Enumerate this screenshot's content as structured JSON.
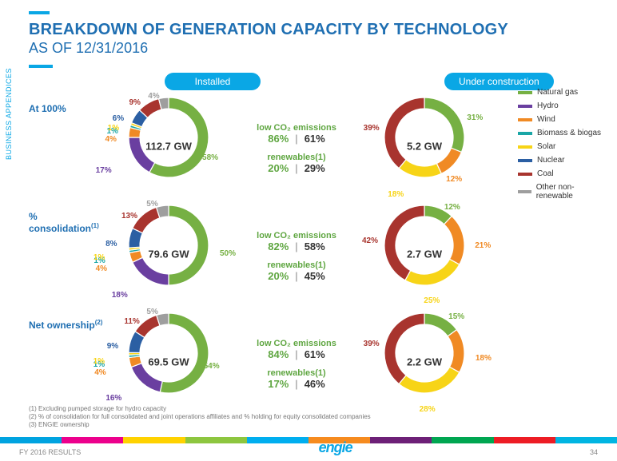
{
  "sidebarLabel": "BUSINESS APPENDICES",
  "title": "BREAKDOWN OF GENERATION CAPACITY BY TECHNOLOGY",
  "subtitle": "AS OF 12/31/2016",
  "installedHeader": "Installed",
  "ucHeader": "Under construction",
  "donutSize": 108,
  "innerRadius": 36,
  "outerRadius": 50,
  "bgColor": "#ffffff",
  "palette": {
    "naturalGas": "#76b043",
    "hydro": "#6a3fa0",
    "wind": "#f08a24",
    "biomass": "#1aa6a6",
    "solar": "#f7d417",
    "nuclear": "#2b5fa3",
    "coal": "#a8342e",
    "other": "#9e9e9e"
  },
  "legend": [
    {
      "label": "Natural gas",
      "color": "#76b043"
    },
    {
      "label": "Hydro",
      "color": "#6a3fa0"
    },
    {
      "label": "Wind",
      "color": "#f08a24"
    },
    {
      "label": "Biomass & biogas",
      "color": "#1aa6a6"
    },
    {
      "label": "Solar",
      "color": "#f7d417"
    },
    {
      "label": "Nuclear",
      "color": "#2b5fa3"
    },
    {
      "label": "Coal",
      "color": "#a8342e"
    },
    {
      "label": "Other non-renewable",
      "color": "#9e9e9e"
    }
  ],
  "categories": [
    {
      "key": "naturalGas",
      "color": "#76b043"
    },
    {
      "key": "hydro",
      "color": "#6a3fa0"
    },
    {
      "key": "wind",
      "color": "#f08a24"
    },
    {
      "key": "biomass",
      "color": "#1aa6a6"
    },
    {
      "key": "solar",
      "color": "#f7d417"
    },
    {
      "key": "nuclear",
      "color": "#2b5fa3"
    },
    {
      "key": "coal",
      "color": "#a8342e"
    },
    {
      "key": "other",
      "color": "#9e9e9e"
    }
  ],
  "rows": [
    {
      "label": "At 100%",
      "sup": "",
      "installed": {
        "center": "112.7 GW",
        "segments": {
          "naturalGas": 58,
          "hydro": 17,
          "wind": 4,
          "biomass": 1,
          "solar": 1,
          "nuclear": 6,
          "coal": 9,
          "other": 4
        },
        "labels": {
          "naturalGas": "58%",
          "hydro": "17%",
          "wind": "4%",
          "biomass": "1%",
          "solar": "1%",
          "nuclear": "6%",
          "coal": "9%",
          "other": "4%"
        }
      },
      "stats": {
        "lowCo2": {
          "header": "low CO₂ emissions",
          "left": "86%",
          "right": "61%"
        },
        "ren": {
          "header": "renewables(1)",
          "left": "20%",
          "right": "29%"
        }
      },
      "uc": {
        "center": "5.2 GW",
        "segments": {
          "naturalGas": 31,
          "wind": 12,
          "solar": 18,
          "coal": 39
        },
        "labels": {
          "naturalGas": "31%",
          "wind": "12%",
          "solar": "18%",
          "coal": "39%"
        }
      }
    },
    {
      "label": "% consolidation",
      "sup": "(1)",
      "installed": {
        "center": "79.6 GW",
        "segments": {
          "naturalGas": 50,
          "hydro": 18,
          "wind": 4,
          "biomass": 1,
          "solar": 1,
          "nuclear": 8,
          "coal": 13,
          "other": 5
        },
        "labels": {
          "naturalGas": "50%",
          "hydro": "18%",
          "wind": "4%",
          "biomass": "1%",
          "solar": "1%",
          "nuclear": "8%",
          "coal": "13%",
          "other": "5%"
        }
      },
      "stats": {
        "lowCo2": {
          "header": "low CO₂ emissions",
          "left": "82%",
          "right": "58%"
        },
        "ren": {
          "header": "renewables(1)",
          "left": "20%",
          "right": "45%"
        }
      },
      "uc": {
        "center": "2.7 GW",
        "segments": {
          "naturalGas": 12,
          "wind": 21,
          "solar": 25,
          "coal": 42
        },
        "labels": {
          "naturalGas": "12%",
          "wind": "21%",
          "solar": "25%",
          "coal": "42%"
        }
      }
    },
    {
      "label": "Net ownership",
      "sup": "(2)",
      "installed": {
        "center": "69.5 GW",
        "segments": {
          "naturalGas": 54,
          "hydro": 16,
          "wind": 4,
          "biomass": 1,
          "solar": 1,
          "nuclear": 9,
          "coal": 11,
          "other": 5
        },
        "labels": {
          "naturalGas": "54%",
          "hydro": "16%",
          "wind": "4%",
          "biomass": "1%",
          "solar": "1%",
          "nuclear": "9%",
          "coal": "11%",
          "other": "5%"
        }
      },
      "stats": {
        "lowCo2": {
          "header": "low CO₂ emissions",
          "left": "84%",
          "right": "61%"
        },
        "ren": {
          "header": "renewables(1)",
          "left": "17%",
          "right": "46%"
        }
      },
      "uc": {
        "center": "2.2 GW",
        "segments": {
          "naturalGas": 15,
          "wind": 18,
          "solar": 28,
          "coal": 39
        },
        "labels": {
          "naturalGas": "15%",
          "wind": "18%",
          "solar": "28%",
          "coal": "39%"
        }
      }
    }
  ],
  "footnotes": [
    "(1)  Excluding pumped storage for hydro capacity",
    "(2)  % of consolidation for full consolidated and joint operations affiliates and % holding for equity consolidated companies",
    "(3)  ENGIE ownership"
  ],
  "footerColors": [
    "#00a3e0",
    "#ec008c",
    "#ffd200",
    "#8dc63f",
    "#00aeef",
    "#f68b1f",
    "#6d2077",
    "#00a651",
    "#ed1c24",
    "#00b5e2"
  ],
  "footerLeft": "FY 2016 RESULTS",
  "pageNum": "34",
  "logo": "enGie"
}
